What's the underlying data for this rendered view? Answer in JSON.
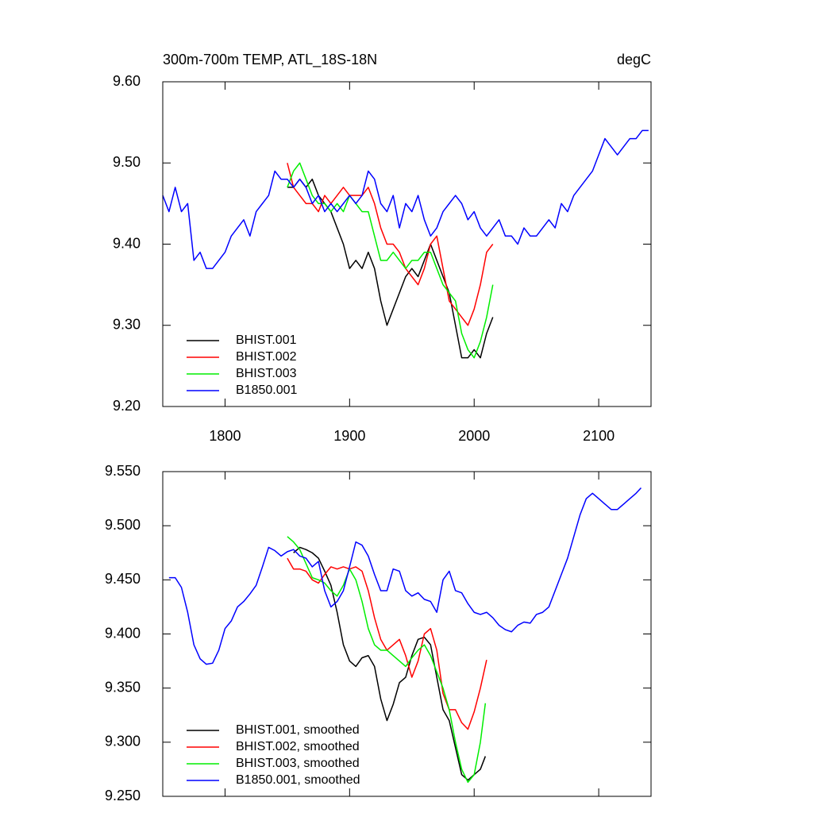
{
  "chart_data": [
    {
      "type": "line",
      "title": "300m-700m TEMP, ATL_18S-18N",
      "right_title": "degC",
      "xlim": [
        1750,
        2142
      ],
      "xticks": [
        1800,
        1900,
        2000,
        2100
      ],
      "show_xtick_labels": true,
      "ylim": [
        9.2,
        9.6
      ],
      "yticks": [
        {
          "value": 9.2,
          "label": "9.20"
        },
        {
          "value": 9.3,
          "label": "9.30"
        },
        {
          "value": 9.4,
          "label": "9.40"
        },
        {
          "value": 9.5,
          "label": "9.50"
        },
        {
          "value": 9.6,
          "label": "9.60"
        }
      ],
      "legend": "lower left",
      "series": [
        {
          "name": "BHIST.001",
          "color": "#000000",
          "x": [
            1850,
            1855,
            1860,
            1865,
            1870,
            1875,
            1880,
            1885,
            1890,
            1895,
            1900,
            1905,
            1910,
            1915,
            1920,
            1925,
            1930,
            1935,
            1940,
            1945,
            1950,
            1955,
            1960,
            1965,
            1970,
            1975,
            1980,
            1985,
            1990,
            1995,
            2000,
            2005,
            2010,
            2015
          ],
          "values": [
            9.47,
            9.47,
            9.48,
            9.47,
            9.48,
            9.46,
            9.45,
            9.44,
            9.42,
            9.4,
            9.37,
            9.38,
            9.37,
            9.39,
            9.37,
            9.33,
            9.3,
            9.32,
            9.34,
            9.36,
            9.37,
            9.36,
            9.38,
            9.4,
            9.38,
            9.36,
            9.34,
            9.3,
            9.26,
            9.26,
            9.27,
            9.26,
            9.29,
            9.31
          ]
        },
        {
          "name": "BHIST.002",
          "color": "#ff0000",
          "x": [
            1850,
            1855,
            1860,
            1865,
            1870,
            1875,
            1880,
            1885,
            1890,
            1895,
            1900,
            1905,
            1910,
            1915,
            1920,
            1925,
            1930,
            1935,
            1940,
            1945,
            1950,
            1955,
            1960,
            1965,
            1970,
            1975,
            1980,
            1985,
            1990,
            1995,
            2000,
            2005,
            2010,
            2015
          ],
          "values": [
            9.5,
            9.47,
            9.46,
            9.45,
            9.45,
            9.44,
            9.46,
            9.45,
            9.46,
            9.47,
            9.46,
            9.46,
            9.46,
            9.47,
            9.45,
            9.42,
            9.4,
            9.4,
            9.39,
            9.37,
            9.36,
            9.35,
            9.37,
            9.4,
            9.41,
            9.37,
            9.33,
            9.32,
            9.31,
            9.3,
            9.32,
            9.35,
            9.39,
            9.4
          ]
        },
        {
          "name": "BHIST.003",
          "color": "#00ee00",
          "x": [
            1850,
            1855,
            1860,
            1865,
            1870,
            1875,
            1880,
            1885,
            1890,
            1895,
            1900,
            1905,
            1910,
            1915,
            1920,
            1925,
            1930,
            1935,
            1940,
            1945,
            1950,
            1955,
            1960,
            1965,
            1970,
            1975,
            1980,
            1985,
            1990,
            1995,
            2000,
            2005,
            2010,
            2015
          ],
          "values": [
            9.47,
            9.49,
            9.5,
            9.48,
            9.46,
            9.45,
            9.45,
            9.44,
            9.45,
            9.44,
            9.46,
            9.45,
            9.44,
            9.44,
            9.41,
            9.38,
            9.38,
            9.39,
            9.38,
            9.37,
            9.38,
            9.38,
            9.39,
            9.39,
            9.37,
            9.35,
            9.34,
            9.33,
            9.29,
            9.27,
            9.26,
            9.28,
            9.31,
            9.35
          ]
        },
        {
          "name": "B1850.001",
          "color": "#0000ff",
          "x": [
            1750,
            1755,
            1760,
            1765,
            1770,
            1775,
            1780,
            1785,
            1790,
            1795,
            1800,
            1805,
            1810,
            1815,
            1820,
            1825,
            1830,
            1835,
            1840,
            1845,
            1850,
            1855,
            1860,
            1865,
            1870,
            1875,
            1880,
            1885,
            1890,
            1895,
            1900,
            1905,
            1910,
            1915,
            1920,
            1925,
            1930,
            1935,
            1940,
            1945,
            1950,
            1955,
            1960,
            1965,
            1970,
            1975,
            1980,
            1985,
            1990,
            1995,
            2000,
            2005,
            2010,
            2015,
            2020,
            2025,
            2030,
            2035,
            2040,
            2045,
            2050,
            2055,
            2060,
            2065,
            2070,
            2075,
            2080,
            2085,
            2090,
            2095,
            2100,
            2105,
            2110,
            2115,
            2120,
            2125,
            2130,
            2135,
            2140
          ],
          "values": [
            9.46,
            9.44,
            9.47,
            9.44,
            9.45,
            9.38,
            9.39,
            9.37,
            9.37,
            9.38,
            9.39,
            9.41,
            9.42,
            9.43,
            9.41,
            9.44,
            9.45,
            9.46,
            9.49,
            9.48,
            9.48,
            9.47,
            9.48,
            9.47,
            9.45,
            9.46,
            9.44,
            9.45,
            9.44,
            9.45,
            9.46,
            9.45,
            9.46,
            9.49,
            9.48,
            9.45,
            9.44,
            9.46,
            9.42,
            9.45,
            9.44,
            9.46,
            9.43,
            9.41,
            9.42,
            9.44,
            9.45,
            9.46,
            9.45,
            9.43,
            9.44,
            9.42,
            9.41,
            9.42,
            9.43,
            9.41,
            9.41,
            9.4,
            9.42,
            9.41,
            9.41,
            9.42,
            9.43,
            9.42,
            9.45,
            9.44,
            9.46,
            9.47,
            9.48,
            9.49,
            9.51,
            9.53,
            9.52,
            9.51,
            9.52,
            9.53,
            9.53,
            9.54,
            9.54
          ]
        }
      ]
    },
    {
      "type": "line",
      "xlim": [
        1750,
        2142
      ],
      "xticks": [
        1800,
        1900,
        2000,
        2100
      ],
      "show_xtick_labels": false,
      "ylim": [
        9.25,
        9.55
      ],
      "yticks": [
        {
          "value": 9.25,
          "label": "9.250"
        },
        {
          "value": 9.3,
          "label": "9.300"
        },
        {
          "value": 9.35,
          "label": "9.350"
        },
        {
          "value": 9.4,
          "label": "9.400"
        },
        {
          "value": 9.45,
          "label": "9.450"
        },
        {
          "value": 9.5,
          "label": "9.500"
        },
        {
          "value": 9.55,
          "label": "9.550"
        }
      ],
      "legend": "lower left",
      "series": [
        {
          "name": "BHIST.001, smoothed",
          "color": "#000000",
          "x": [
            1855,
            1860,
            1865,
            1870,
            1875,
            1880,
            1885,
            1890,
            1895,
            1900,
            1905,
            1910,
            1915,
            1920,
            1925,
            1930,
            1935,
            1940,
            1945,
            1950,
            1955,
            1960,
            1965,
            1970,
            1975,
            1980,
            1985,
            1990,
            1995,
            2000,
            2005,
            2009
          ],
          "values": [
            9.475,
            9.48,
            9.478,
            9.475,
            9.47,
            9.458,
            9.445,
            9.42,
            9.39,
            9.375,
            9.37,
            9.378,
            9.38,
            9.37,
            9.34,
            9.32,
            9.335,
            9.355,
            9.36,
            9.38,
            9.395,
            9.397,
            9.39,
            9.36,
            9.33,
            9.32,
            9.295,
            9.27,
            9.265,
            9.27,
            9.275,
            9.287
          ]
        },
        {
          "name": "BHIST.002, smoothed",
          "color": "#ff0000",
          "x": [
            1850,
            1855,
            1860,
            1865,
            1870,
            1875,
            1880,
            1885,
            1890,
            1895,
            1900,
            1905,
            1910,
            1915,
            1920,
            1925,
            1930,
            1935,
            1940,
            1945,
            1950,
            1955,
            1960,
            1965,
            1970,
            1975,
            1980,
            1985,
            1990,
            1995,
            2000,
            2005,
            2010
          ],
          "values": [
            9.47,
            9.46,
            9.46,
            9.458,
            9.45,
            9.447,
            9.455,
            9.462,
            9.46,
            9.462,
            9.46,
            9.462,
            9.458,
            9.44,
            9.415,
            9.395,
            9.385,
            9.39,
            9.395,
            9.38,
            9.36,
            9.375,
            9.4,
            9.405,
            9.385,
            9.345,
            9.33,
            9.33,
            9.318,
            9.312,
            9.328,
            9.35,
            9.376
          ]
        },
        {
          "name": "BHIST.003, smoothed",
          "color": "#00ee00",
          "x": [
            1850,
            1855,
            1860,
            1865,
            1870,
            1875,
            1880,
            1885,
            1890,
            1895,
            1900,
            1905,
            1910,
            1915,
            1920,
            1925,
            1930,
            1935,
            1940,
            1945,
            1950,
            1955,
            1960,
            1965,
            1970,
            1975,
            1980,
            1985,
            1990,
            1995,
            2000,
            2005,
            2009
          ],
          "values": [
            9.49,
            9.485,
            9.478,
            9.465,
            9.452,
            9.45,
            9.447,
            9.44,
            9.435,
            9.445,
            9.46,
            9.45,
            9.43,
            9.405,
            9.39,
            9.385,
            9.385,
            9.38,
            9.375,
            9.37,
            9.378,
            9.385,
            9.39,
            9.38,
            9.365,
            9.35,
            9.33,
            9.3,
            9.275,
            9.263,
            9.27,
            9.3,
            9.336
          ]
        },
        {
          "name": "B1850.001, smoothed",
          "color": "#0000ff",
          "x": [
            1755,
            1760,
            1765,
            1770,
            1775,
            1780,
            1785,
            1790,
            1795,
            1800,
            1805,
            1810,
            1815,
            1820,
            1825,
            1830,
            1835,
            1840,
            1845,
            1850,
            1855,
            1860,
            1865,
            1870,
            1875,
            1880,
            1885,
            1890,
            1895,
            1900,
            1905,
            1910,
            1915,
            1920,
            1925,
            1930,
            1935,
            1940,
            1945,
            1950,
            1955,
            1960,
            1965,
            1970,
            1975,
            1980,
            1985,
            1990,
            1995,
            2000,
            2005,
            2010,
            2015,
            2020,
            2025,
            2030,
            2035,
            2040,
            2045,
            2050,
            2055,
            2060,
            2065,
            2070,
            2075,
            2080,
            2085,
            2090,
            2095,
            2100,
            2105,
            2110,
            2115,
            2120,
            2125,
            2130,
            2134
          ],
          "values": [
            9.452,
            9.452,
            9.443,
            9.42,
            9.39,
            9.377,
            9.372,
            9.373,
            9.385,
            9.405,
            9.412,
            9.425,
            9.43,
            9.437,
            9.445,
            9.462,
            9.48,
            9.477,
            9.472,
            9.476,
            9.478,
            9.472,
            9.47,
            9.462,
            9.467,
            9.44,
            9.425,
            9.43,
            9.44,
            9.462,
            9.485,
            9.482,
            9.472,
            9.455,
            9.44,
            9.44,
            9.46,
            9.458,
            9.44,
            9.435,
            9.438,
            9.432,
            9.43,
            9.42,
            9.45,
            9.458,
            9.44,
            9.438,
            9.428,
            9.42,
            9.418,
            9.42,
            9.415,
            9.408,
            9.404,
            9.402,
            9.408,
            9.411,
            9.41,
            9.418,
            9.42,
            9.425,
            9.44,
            9.455,
            9.47,
            9.49,
            9.51,
            9.525,
            9.53,
            9.525,
            9.52,
            9.515,
            9.515,
            9.52,
            9.525,
            9.53,
            9.535
          ]
        }
      ]
    }
  ]
}
